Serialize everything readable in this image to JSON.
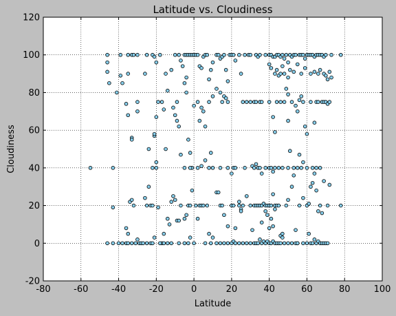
{
  "chart_data": {
    "type": "scatter",
    "title": "Latitude vs. Cloudiness",
    "xlabel": "Latitude",
    "ylabel": "Cloudiness",
    "xlim": [
      -80,
      100
    ],
    "ylim": [
      -20,
      120
    ],
    "xticks": [
      -80,
      -60,
      -40,
      -20,
      0,
      20,
      40,
      60,
      80,
      100
    ],
    "yticks": [
      -20,
      0,
      20,
      40,
      60,
      80,
      100,
      120
    ],
    "grid": true,
    "grid_style": "dotted",
    "marker_color": "#87ceeb",
    "marker_edge": "#000000",
    "background": "#bfbfbf",
    "plot_bg": "#ffffff",
    "points": [
      [
        -46,
        100
      ],
      [
        -46,
        96
      ],
      [
        -46,
        91
      ],
      [
        -45,
        85
      ],
      [
        -43,
        40
      ],
      [
        -43,
        19
      ],
      [
        -41,
        80
      ],
      [
        -39,
        100
      ],
      [
        -39,
        89
      ],
      [
        -38,
        85
      ],
      [
        -36,
        74
      ],
      [
        -35,
        68
      ],
      [
        -35,
        90
      ],
      [
        -35,
        100
      ],
      [
        -33,
        100
      ],
      [
        -32,
        100
      ],
      [
        -30,
        100
      ],
      [
        -30,
        75
      ],
      [
        -30,
        70
      ],
      [
        -26,
        90
      ],
      [
        -25,
        100
      ],
      [
        -22,
        100
      ],
      [
        -21,
        99
      ],
      [
        -20,
        96
      ],
      [
        -18,
        100
      ],
      [
        -17,
        75
      ],
      [
        -16,
        71
      ],
      [
        -15,
        90
      ],
      [
        -14,
        81
      ],
      [
        -12,
        92
      ],
      [
        -10,
        100
      ],
      [
        -8,
        100
      ],
      [
        -7,
        97
      ],
      [
        -6,
        94
      ],
      [
        -5,
        100
      ],
      [
        -4,
        100
      ],
      [
        -3,
        100
      ],
      [
        -2,
        100
      ],
      [
        -1,
        100
      ],
      [
        0,
        100
      ],
      [
        1,
        100
      ],
      [
        2,
        100
      ],
      [
        3,
        94
      ],
      [
        4,
        93
      ],
      [
        5,
        99
      ],
      [
        6,
        100
      ],
      [
        7,
        100
      ],
      [
        8,
        87
      ],
      [
        9,
        92
      ],
      [
        10,
        96
      ],
      [
        12,
        100
      ],
      [
        13,
        100
      ],
      [
        14,
        98
      ],
      [
        15,
        99
      ],
      [
        16,
        100
      ],
      [
        17,
        92
      ],
      [
        18,
        86
      ],
      [
        19,
        100
      ],
      [
        20,
        100
      ],
      [
        21,
        100
      ],
      [
        22,
        97
      ],
      [
        24,
        100
      ],
      [
        27,
        100
      ],
      [
        29,
        100
      ],
      [
        30,
        100
      ],
      [
        33,
        100
      ],
      [
        34,
        99
      ],
      [
        35,
        100
      ],
      [
        38,
        100
      ],
      [
        40,
        100
      ],
      [
        41,
        100
      ],
      [
        42,
        99
      ],
      [
        43,
        99
      ],
      [
        44,
        100
      ],
      [
        45,
        100
      ],
      [
        46,
        99
      ],
      [
        47,
        100
      ],
      [
        48,
        98
      ],
      [
        49,
        100
      ],
      [
        50,
        96
      ],
      [
        51,
        100
      ],
      [
        52,
        99
      ],
      [
        53,
        100
      ],
      [
        54,
        100
      ],
      [
        56,
        100
      ],
      [
        57,
        100
      ],
      [
        58,
        100
      ],
      [
        59,
        98
      ],
      [
        60,
        100
      ],
      [
        61,
        100
      ],
      [
        62,
        100
      ],
      [
        63,
        100
      ],
      [
        64,
        99
      ],
      [
        65,
        100
      ],
      [
        66,
        100
      ],
      [
        67,
        100
      ],
      [
        68,
        100
      ],
      [
        69,
        99
      ],
      [
        70,
        100
      ],
      [
        73,
        100
      ],
      [
        78,
        100
      ],
      [
        40,
        95
      ],
      [
        41,
        93
      ],
      [
        43,
        90
      ],
      [
        44,
        92
      ],
      [
        45,
        89
      ],
      [
        46,
        90
      ],
      [
        47,
        94
      ],
      [
        48,
        90
      ],
      [
        50,
        88
      ],
      [
        51,
        92
      ],
      [
        53,
        91
      ],
      [
        55,
        95
      ],
      [
        57,
        90
      ],
      [
        59,
        93
      ],
      [
        62,
        90
      ],
      [
        64,
        91
      ],
      [
        66,
        90
      ],
      [
        67,
        92
      ],
      [
        69,
        90
      ],
      [
        70,
        89
      ],
      [
        71,
        87
      ],
      [
        72,
        91
      ],
      [
        73,
        88
      ],
      [
        25,
        90
      ],
      [
        12,
        82
      ],
      [
        14,
        80
      ],
      [
        15,
        75
      ],
      [
        16,
        78
      ],
      [
        17,
        77
      ],
      [
        18,
        75
      ],
      [
        10,
        78
      ],
      [
        8,
        75
      ],
      [
        6,
        62
      ],
      [
        5,
        70
      ],
      [
        4,
        72
      ],
      [
        3,
        65
      ],
      [
        2,
        75
      ],
      [
        -9,
        75
      ],
      [
        -10,
        68
      ],
      [
        -11,
        72
      ],
      [
        -19,
        75
      ],
      [
        -20,
        67
      ],
      [
        -8,
        62
      ],
      [
        -9,
        65
      ],
      [
        0,
        73
      ],
      [
        -4,
        80
      ],
      [
        -5,
        85
      ],
      [
        -4,
        88
      ],
      [
        49,
        82
      ],
      [
        50,
        79
      ],
      [
        52,
        75
      ],
      [
        54,
        73
      ],
      [
        55,
        70
      ],
      [
        56,
        76
      ],
      [
        57,
        78
      ],
      [
        58,
        75
      ],
      [
        59,
        62
      ],
      [
        60,
        58
      ],
      [
        62,
        75
      ],
      [
        64,
        64
      ],
      [
        65,
        75
      ],
      [
        66,
        75
      ],
      [
        68,
        75
      ],
      [
        69,
        75
      ],
      [
        70,
        75
      ],
      [
        71,
        74
      ],
      [
        72,
        75
      ],
      [
        26,
        75
      ],
      [
        28,
        75
      ],
      [
        30,
        75
      ],
      [
        32,
        75
      ],
      [
        33,
        75
      ],
      [
        35,
        75
      ],
      [
        36,
        75
      ],
      [
        40,
        75
      ],
      [
        42,
        67
      ],
      [
        43,
        59
      ],
      [
        44,
        75
      ],
      [
        46,
        75
      ],
      [
        48,
        75
      ],
      [
        50,
        65
      ],
      [
        -55,
        40
      ],
      [
        -33,
        56
      ],
      [
        -33,
        55
      ],
      [
        -22,
        40
      ],
      [
        -20,
        40
      ],
      [
        -21,
        57
      ],
      [
        -21,
        58
      ],
      [
        -20,
        43
      ],
      [
        -15,
        50
      ],
      [
        -24,
        50
      ],
      [
        -7,
        47
      ],
      [
        -5,
        40
      ],
      [
        -3,
        55
      ],
      [
        -2,
        48
      ],
      [
        -1,
        40
      ],
      [
        -2,
        40
      ],
      [
        2,
        40
      ],
      [
        4,
        41
      ],
      [
        6,
        44
      ],
      [
        8,
        40
      ],
      [
        9,
        48
      ],
      [
        10,
        40
      ],
      [
        14,
        40
      ],
      [
        18,
        40
      ],
      [
        20,
        37
      ],
      [
        21,
        40
      ],
      [
        22,
        40
      ],
      [
        27,
        40
      ],
      [
        31,
        41
      ],
      [
        32,
        40
      ],
      [
        33,
        42
      ],
      [
        34,
        40
      ],
      [
        35,
        40
      ],
      [
        36,
        37
      ],
      [
        38,
        40
      ],
      [
        40,
        40
      ],
      [
        41,
        40
      ],
      [
        42,
        38
      ],
      [
        43,
        40
      ],
      [
        45,
        40
      ],
      [
        47,
        40
      ],
      [
        50,
        40
      ],
      [
        51,
        49
      ],
      [
        53,
        40
      ],
      [
        55,
        40
      ],
      [
        56,
        47
      ],
      [
        57,
        40
      ],
      [
        58,
        43
      ],
      [
        60,
        40
      ],
      [
        63,
        40
      ],
      [
        65,
        40
      ],
      [
        67,
        40
      ],
      [
        69,
        33
      ],
      [
        72,
        31
      ],
      [
        -36,
        8
      ],
      [
        -35,
        5
      ],
      [
        -34,
        22
      ],
      [
        -33,
        23
      ],
      [
        -32,
        20
      ],
      [
        -30,
        2
      ],
      [
        -29,
        0
      ],
      [
        -26,
        24
      ],
      [
        -25,
        20
      ],
      [
        -24,
        30
      ],
      [
        -23,
        20
      ],
      [
        -22,
        20
      ],
      [
        -21,
        3
      ],
      [
        -19,
        19
      ],
      [
        -17,
        0
      ],
      [
        -16,
        5
      ],
      [
        -14,
        13
      ],
      [
        -13,
        10
      ],
      [
        -12,
        22
      ],
      [
        -11,
        25
      ],
      [
        -10,
        23
      ],
      [
        -9,
        12
      ],
      [
        -8,
        12
      ],
      [
        -7,
        20
      ],
      [
        -5,
        13
      ],
      [
        -4,
        15
      ],
      [
        -3,
        20
      ],
      [
        -2,
        20
      ],
      [
        -1,
        28
      ],
      [
        1,
        20
      ],
      [
        2,
        13
      ],
      [
        3,
        20
      ],
      [
        4,
        20
      ],
      [
        5,
        20
      ],
      [
        7,
        20
      ],
      [
        8,
        5
      ],
      [
        10,
        3
      ],
      [
        12,
        27
      ],
      [
        13,
        27
      ],
      [
        14,
        20
      ],
      [
        15,
        20
      ],
      [
        16,
        15
      ],
      [
        18,
        9
      ],
      [
        20,
        20
      ],
      [
        21,
        20
      ],
      [
        22,
        8
      ],
      [
        24,
        22
      ],
      [
        25,
        18
      ],
      [
        26,
        20
      ],
      [
        28,
        25
      ],
      [
        30,
        20
      ],
      [
        32,
        20
      ],
      [
        33,
        20
      ],
      [
        34,
        20
      ],
      [
        35,
        20
      ],
      [
        36,
        20
      ],
      [
        37,
        21
      ],
      [
        38,
        20
      ],
      [
        39,
        20
      ],
      [
        40,
        20
      ],
      [
        41,
        20
      ],
      [
        42,
        26
      ],
      [
        43,
        20
      ],
      [
        44,
        20
      ],
      [
        45,
        20
      ],
      [
        46,
        4
      ],
      [
        47,
        5
      ],
      [
        49,
        20
      ],
      [
        50,
        23
      ],
      [
        52,
        30
      ],
      [
        53,
        36
      ],
      [
        56,
        20
      ],
      [
        58,
        24
      ],
      [
        60,
        20
      ],
      [
        61,
        21
      ],
      [
        62,
        30
      ],
      [
        63,
        32
      ],
      [
        64,
        37
      ],
      [
        65,
        28
      ],
      [
        66,
        17
      ],
      [
        67,
        20
      ],
      [
        68,
        16
      ],
      [
        71,
        20
      ],
      [
        78,
        20
      ],
      [
        41,
        13
      ],
      [
        40,
        8
      ],
      [
        42,
        9
      ],
      [
        43,
        18
      ],
      [
        38,
        17
      ],
      [
        39,
        15
      ],
      [
        36,
        11
      ],
      [
        24,
        20
      ],
      [
        25,
        17
      ],
      [
        31,
        7
      ],
      [
        54,
        7
      ],
      [
        55,
        0
      ],
      [
        -46,
        0
      ],
      [
        -43,
        0
      ],
      [
        -40,
        0
      ],
      [
        -38,
        0
      ],
      [
        -36,
        0
      ],
      [
        -35,
        0
      ],
      [
        -33,
        0
      ],
      [
        -31,
        0
      ],
      [
        -28,
        0
      ],
      [
        -27,
        0
      ],
      [
        -25,
        0
      ],
      [
        -23,
        0
      ],
      [
        -22,
        0
      ],
      [
        -18,
        0
      ],
      [
        -16,
        0
      ],
      [
        -14,
        0
      ],
      [
        -12,
        0
      ],
      [
        -8,
        0
      ],
      [
        -5,
        0
      ],
      [
        -3,
        0
      ],
      [
        -2,
        3
      ],
      [
        0,
        0
      ],
      [
        6,
        0
      ],
      [
        9,
        0
      ],
      [
        12,
        0
      ],
      [
        14,
        0
      ],
      [
        16,
        0
      ],
      [
        18,
        0
      ],
      [
        20,
        0
      ],
      [
        21,
        1
      ],
      [
        22,
        0
      ],
      [
        24,
        0
      ],
      [
        26,
        0
      ],
      [
        28,
        0
      ],
      [
        30,
        0
      ],
      [
        32,
        0
      ],
      [
        33,
        0
      ],
      [
        34,
        0
      ],
      [
        35,
        2
      ],
      [
        36,
        0
      ],
      [
        37,
        1
      ],
      [
        38,
        0
      ],
      [
        39,
        1
      ],
      [
        40,
        0
      ],
      [
        41,
        0
      ],
      [
        42,
        1
      ],
      [
        43,
        0
      ],
      [
        44,
        0
      ],
      [
        45,
        0
      ],
      [
        46,
        0
      ],
      [
        47,
        3
      ],
      [
        48,
        0
      ],
      [
        50,
        0
      ],
      [
        52,
        0
      ],
      [
        54,
        0
      ],
      [
        55,
        0
      ],
      [
        58,
        0
      ],
      [
        60,
        0
      ],
      [
        61,
        5
      ],
      [
        62,
        0
      ],
      [
        63,
        0
      ],
      [
        64,
        2
      ],
      [
        65,
        0
      ],
      [
        66,
        1
      ],
      [
        67,
        0
      ],
      [
        68,
        0
      ],
      [
        69,
        0
      ],
      [
        70,
        0
      ],
      [
        71,
        0
      ]
    ]
  }
}
